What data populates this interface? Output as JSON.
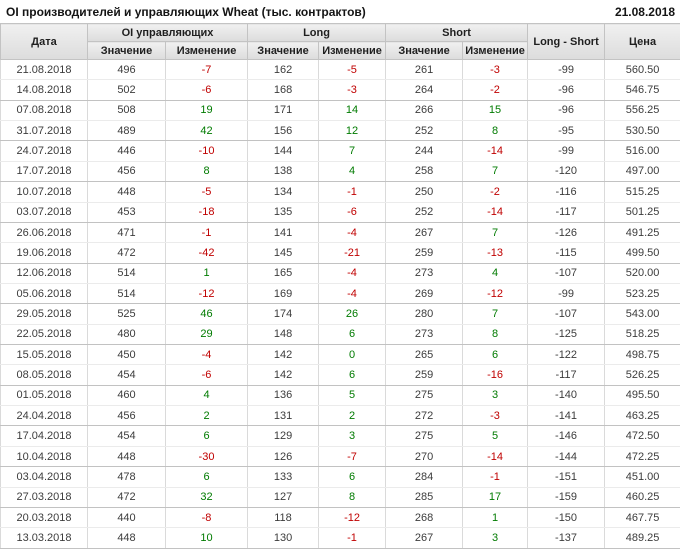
{
  "title": "OI производителей и управляющих Wheat (тыс. контрактов)",
  "report_date": "21.08.2018",
  "colors": {
    "negative": "#c00000",
    "positive": "#007b00",
    "header_bg": "#e4e4e4",
    "text": "#3c3c3c"
  },
  "table": {
    "headers": {
      "date": "Дата",
      "oi_group": "OI управляющих",
      "long_group": "Long",
      "short_group": "Short",
      "value": "Значение",
      "change": "Изменение",
      "long_short": "Long - Short",
      "price": "Цена"
    },
    "rows": [
      {
        "date": "21.08.2018",
        "oi": 496,
        "oi_chg": -7,
        "long": 162,
        "long_chg": -5,
        "short": 261,
        "short_chg": -3,
        "long_short": -99,
        "price": "560.50"
      },
      {
        "date": "14.08.2018",
        "oi": 502,
        "oi_chg": -6,
        "long": 168,
        "long_chg": -3,
        "short": 264,
        "short_chg": -2,
        "long_short": -96,
        "price": "546.75"
      },
      {
        "date": "07.08.2018",
        "oi": 508,
        "oi_chg": 19,
        "long": 171,
        "long_chg": 14,
        "short": 266,
        "short_chg": 15,
        "long_short": -96,
        "price": "556.25"
      },
      {
        "date": "31.07.2018",
        "oi": 489,
        "oi_chg": 42,
        "long": 156,
        "long_chg": 12,
        "short": 252,
        "short_chg": 8,
        "long_short": -95,
        "price": "530.50"
      },
      {
        "date": "24.07.2018",
        "oi": 446,
        "oi_chg": -10,
        "long": 144,
        "long_chg": 7,
        "short": 244,
        "short_chg": -14,
        "long_short": -99,
        "price": "516.00"
      },
      {
        "date": "17.07.2018",
        "oi": 456,
        "oi_chg": 8,
        "long": 138,
        "long_chg": 4,
        "short": 258,
        "short_chg": 7,
        "long_short": -120,
        "price": "497.00"
      },
      {
        "date": "10.07.2018",
        "oi": 448,
        "oi_chg": -5,
        "long": 134,
        "long_chg": -1,
        "short": 250,
        "short_chg": -2,
        "long_short": -116,
        "price": "515.25"
      },
      {
        "date": "03.07.2018",
        "oi": 453,
        "oi_chg": -18,
        "long": 135,
        "long_chg": -6,
        "short": 252,
        "short_chg": -14,
        "long_short": -117,
        "price": "501.25"
      },
      {
        "date": "26.06.2018",
        "oi": 471,
        "oi_chg": -1,
        "long": 141,
        "long_chg": -4,
        "short": 267,
        "short_chg": 7,
        "long_short": -126,
        "price": "491.25"
      },
      {
        "date": "19.06.2018",
        "oi": 472,
        "oi_chg": -42,
        "long": 145,
        "long_chg": -21,
        "short": 259,
        "short_chg": -13,
        "long_short": -115,
        "price": "499.50"
      },
      {
        "date": "12.06.2018",
        "oi": 514,
        "oi_chg": 1,
        "long": 165,
        "long_chg": -4,
        "short": 273,
        "short_chg": 4,
        "long_short": -107,
        "price": "520.00"
      },
      {
        "date": "05.06.2018",
        "oi": 514,
        "oi_chg": -12,
        "long": 169,
        "long_chg": -4,
        "short": 269,
        "short_chg": -12,
        "long_short": -99,
        "price": "523.25"
      },
      {
        "date": "29.05.2018",
        "oi": 525,
        "oi_chg": 46,
        "long": 174,
        "long_chg": 26,
        "short": 280,
        "short_chg": 7,
        "long_short": -107,
        "price": "543.00"
      },
      {
        "date": "22.05.2018",
        "oi": 480,
        "oi_chg": 29,
        "long": 148,
        "long_chg": 6,
        "short": 273,
        "short_chg": 8,
        "long_short": -125,
        "price": "518.25"
      },
      {
        "date": "15.05.2018",
        "oi": 450,
        "oi_chg": -4,
        "long": 142,
        "long_chg": 0,
        "short": 265,
        "short_chg": 6,
        "long_short": -122,
        "price": "498.75"
      },
      {
        "date": "08.05.2018",
        "oi": 454,
        "oi_chg": -6,
        "long": 142,
        "long_chg": 6,
        "short": 259,
        "short_chg": -16,
        "long_short": -117,
        "price": "526.25"
      },
      {
        "date": "01.05.2018",
        "oi": 460,
        "oi_chg": 4,
        "long": 136,
        "long_chg": 5,
        "short": 275,
        "short_chg": 3,
        "long_short": -140,
        "price": "495.50"
      },
      {
        "date": "24.04.2018",
        "oi": 456,
        "oi_chg": 2,
        "long": 131,
        "long_chg": 2,
        "short": 272,
        "short_chg": -3,
        "long_short": -141,
        "price": "463.25"
      },
      {
        "date": "17.04.2018",
        "oi": 454,
        "oi_chg": 6,
        "long": 129,
        "long_chg": 3,
        "short": 275,
        "short_chg": 5,
        "long_short": -146,
        "price": "472.50"
      },
      {
        "date": "10.04.2018",
        "oi": 448,
        "oi_chg": -30,
        "long": 126,
        "long_chg": -7,
        "short": 270,
        "short_chg": -14,
        "long_short": -144,
        "price": "472.25"
      },
      {
        "date": "03.04.2018",
        "oi": 478,
        "oi_chg": 6,
        "long": 133,
        "long_chg": 6,
        "short": 284,
        "short_chg": -1,
        "long_short": -151,
        "price": "451.00"
      },
      {
        "date": "27.03.2018",
        "oi": 472,
        "oi_chg": 32,
        "long": 127,
        "long_chg": 8,
        "short": 285,
        "short_chg": 17,
        "long_short": -159,
        "price": "460.25"
      },
      {
        "date": "20.03.2018",
        "oi": 440,
        "oi_chg": -8,
        "long": 118,
        "long_chg": -12,
        "short": 268,
        "short_chg": 1,
        "long_short": -150,
        "price": "467.75"
      },
      {
        "date": "13.03.2018",
        "oi": 448,
        "oi_chg": 10,
        "long": 130,
        "long_chg": -1,
        "short": 267,
        "short_chg": 3,
        "long_short": -137,
        "price": "489.25"
      }
    ]
  }
}
